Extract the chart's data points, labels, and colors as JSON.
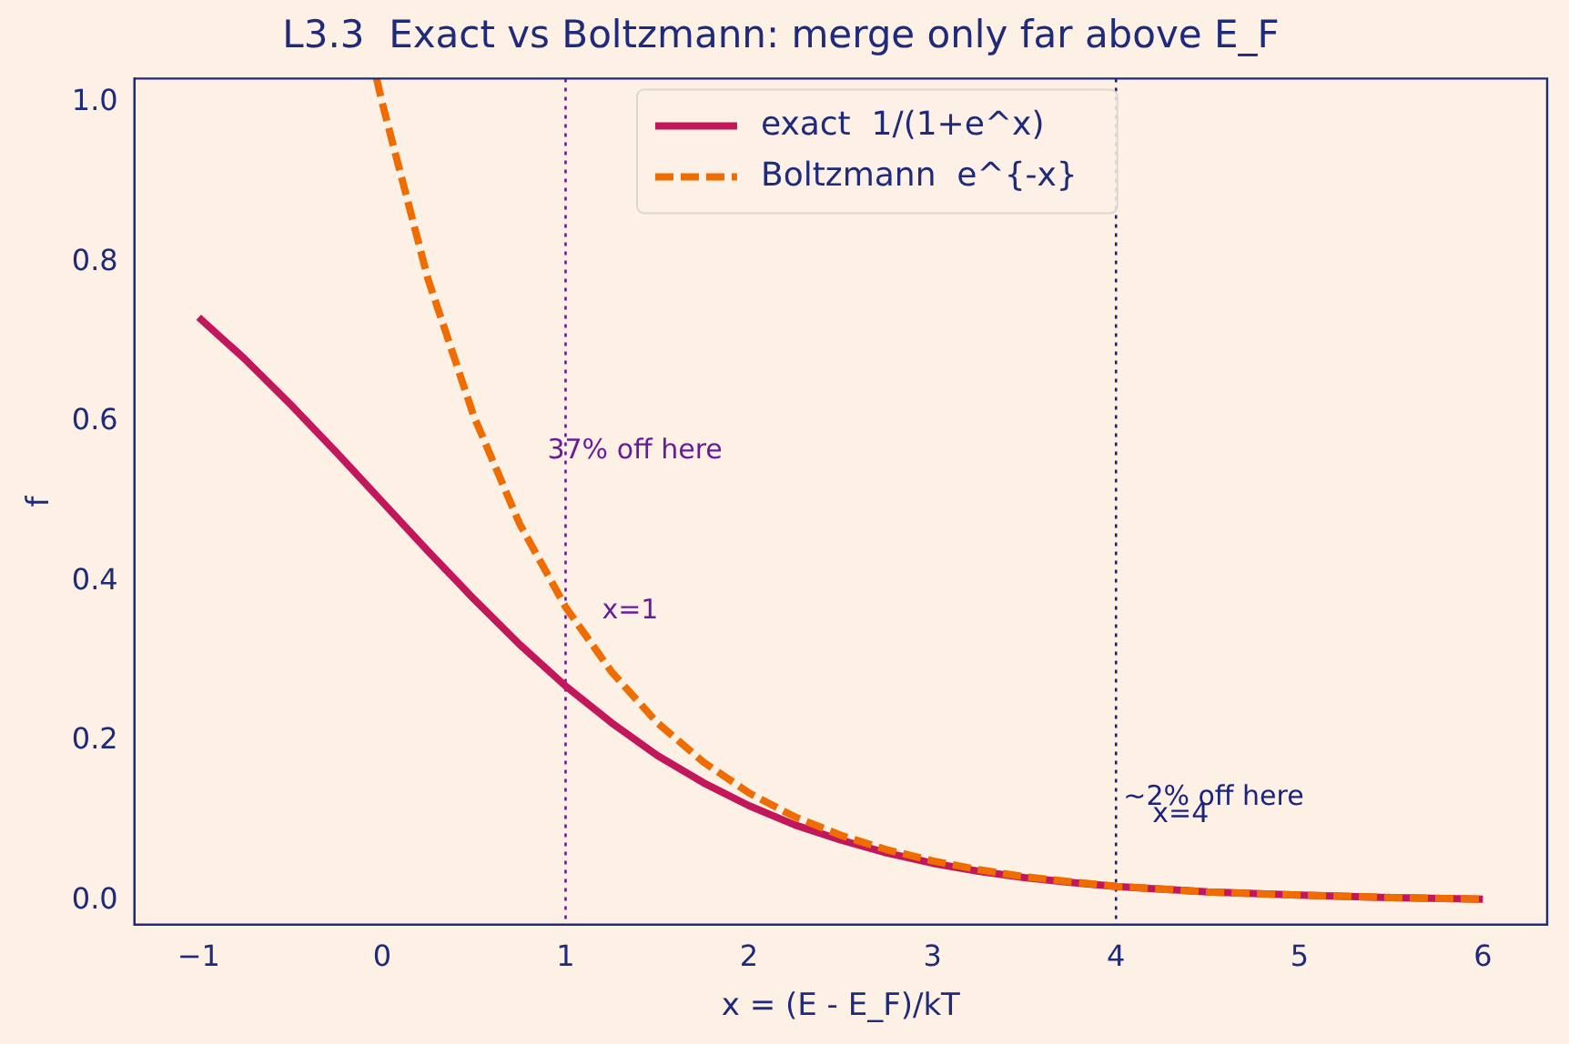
{
  "chart_data": {
    "type": "line",
    "title": "L3.3  Exact vs Boltzmann: merge only far above E_F",
    "xlabel": "x = (E - E_F)/kT",
    "ylabel": "f",
    "series": [
      {
        "name": "exact  1/(1+e^x)",
        "color": "#c2185b",
        "line_style": "solid",
        "x": [
          -1,
          -0.75,
          -0.5,
          -0.25,
          0,
          0.25,
          0.5,
          0.75,
          1,
          1.25,
          1.5,
          1.75,
          2,
          2.25,
          2.5,
          2.75,
          3,
          3.25,
          3.5,
          3.75,
          4,
          4.5,
          5,
          5.5,
          6
        ],
        "values": [
          0.731,
          0.679,
          0.622,
          0.562,
          0.5,
          0.438,
          0.378,
          0.321,
          0.269,
          0.223,
          0.182,
          0.148,
          0.119,
          0.095,
          0.076,
          0.06,
          0.047,
          0.037,
          0.029,
          0.023,
          0.018,
          0.011,
          0.007,
          0.004,
          0.002
        ]
      },
      {
        "name": "Boltzmann  e^{-x}",
        "color": "#ef6c00",
        "line_style": "dashed",
        "x": [
          -0.03,
          0,
          0.25,
          0.5,
          0.75,
          1,
          1.25,
          1.5,
          1.75,
          2,
          2.25,
          2.5,
          2.75,
          3,
          3.25,
          3.5,
          3.75,
          4,
          4.5,
          5,
          5.5,
          6
        ],
        "values": [
          1.03,
          1,
          0.779,
          0.607,
          0.472,
          0.368,
          0.287,
          0.223,
          0.174,
          0.135,
          0.105,
          0.082,
          0.064,
          0.05,
          0.039,
          0.03,
          0.024,
          0.018,
          0.011,
          0.007,
          0.004,
          0.002
        ]
      }
    ],
    "xlim": [
      -1.35,
      6.35
    ],
    "xticks": [
      -1,
      0,
      1,
      2,
      3,
      4,
      5,
      6
    ],
    "ylim": [
      -0.03,
      1.03
    ],
    "yticks": [
      {
        "value": 0,
        "label": "0.0"
      },
      {
        "value": 0.2,
        "label": "0.2"
      },
      {
        "value": 0.4,
        "label": "0.4"
      },
      {
        "value": 0.6,
        "label": "0.6"
      },
      {
        "value": 0.8,
        "label": "0.8"
      },
      {
        "value": 1,
        "label": "1.0"
      }
    ],
    "ref_lines": [
      {
        "axis": "x",
        "value": 1,
        "color": "#6a1b9a",
        "line_style": "dotted",
        "label": "x=1"
      },
      {
        "axis": "x",
        "value": 4,
        "color": "#1a237e",
        "line_style": "dotted",
        "label": "x=4"
      }
    ],
    "annotations": [
      "37% off here",
      "~2% off here"
    ],
    "grid": false,
    "legend": "top",
    "marker": "none"
  }
}
